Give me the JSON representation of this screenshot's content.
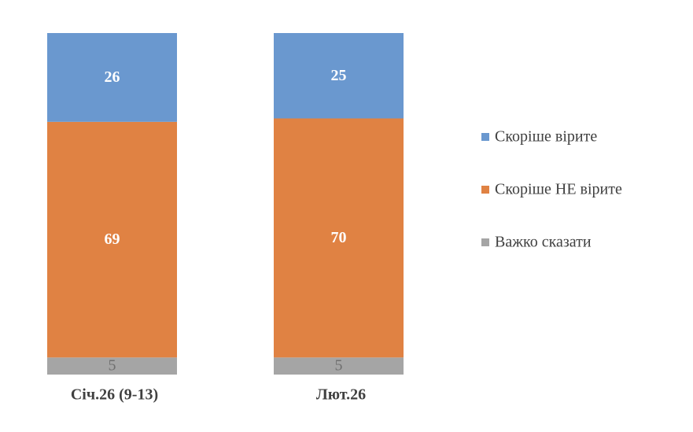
{
  "chart_data": {
    "type": "stacked_bar",
    "categories": [
      "Січ.26 (9-13)",
      "Лют.26"
    ],
    "series": [
      {
        "name": "Скоріше вірите",
        "color": "#6a98cf",
        "values": [
          26,
          25
        ]
      },
      {
        "name": "Скоріше НЕ вірите",
        "color": "#e08243",
        "values": [
          69,
          70
        ]
      },
      {
        "name": "Важко сказати",
        "color": "#a5a5a5",
        "values": [
          5,
          5
        ]
      }
    ]
  }
}
